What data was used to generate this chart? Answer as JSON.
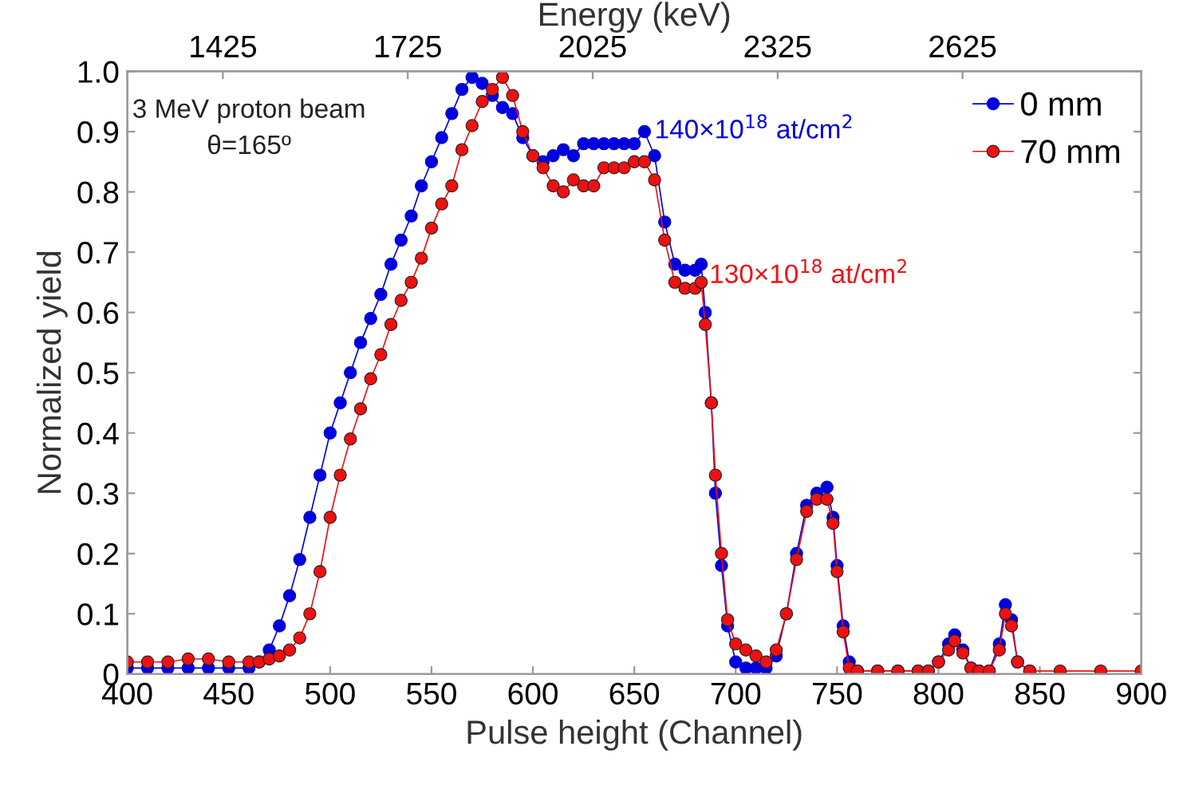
{
  "chart_data": {
    "type": "line",
    "xlabel": "Pulse height (Channel)",
    "ylabel": "Normalized yield",
    "x2label": "Energy (keV)",
    "xlim": [
      400,
      900
    ],
    "xticks": [
      400,
      450,
      500,
      550,
      600,
      650,
      700,
      750,
      800,
      850,
      900
    ],
    "ylim": [
      0,
      1
    ],
    "yticks": [
      0,
      0.1,
      0.2,
      0.3,
      0.4,
      0.5,
      0.6,
      0.7,
      0.8,
      0.9,
      {
        "value": 1,
        "label": "1.0"
      }
    ],
    "x2lim": [
      1270,
      2915
    ],
    "x2ticks": [
      1425,
      1725,
      2025,
      2325,
      2625
    ],
    "marker": "circle",
    "line_style": "solid",
    "legend": "top right",
    "grid": false,
    "annotations": [
      "3 MeV proton beam",
      "θ=165º",
      {
        "text": "140×10$^{18}$ at/cm$^{2}$",
        "x": 660,
        "y": 0.9
      },
      {
        "text": "130×10$^{18}$ at/cm$^{2}$",
        "x": 687,
        "y": 0.66
      }
    ],
    "series": [
      {
        "name": "0 mm",
        "color": "#0000dd",
        "x": [
          400,
          410,
          420,
          430,
          440,
          450,
          460,
          465,
          470,
          475,
          480,
          485,
          490,
          495,
          500,
          505,
          510,
          515,
          520,
          525,
          530,
          535,
          540,
          545,
          550,
          555,
          560,
          565,
          570,
          575,
          580,
          585,
          590,
          595,
          600,
          605,
          610,
          615,
          620,
          625,
          630,
          635,
          640,
          645,
          650,
          655,
          660,
          665,
          670,
          675,
          680,
          683,
          685,
          688,
          690,
          693,
          696,
          700,
          705,
          710,
          715,
          720,
          725,
          730,
          735,
          740,
          745,
          748,
          750,
          753,
          756,
          760,
          770,
          780,
          790,
          795,
          800,
          805,
          808,
          812,
          816,
          820,
          825,
          830,
          833,
          836,
          839,
          845
        ],
        "values": [
          0.01,
          0.01,
          0.01,
          0.01,
          0.01,
          0.01,
          0.01,
          0.02,
          0.04,
          0.08,
          0.13,
          0.19,
          0.26,
          0.33,
          0.4,
          0.45,
          0.5,
          0.55,
          0.59,
          0.63,
          0.68,
          0.72,
          0.76,
          0.81,
          0.85,
          0.89,
          0.93,
          0.97,
          0.99,
          0.98,
          0.96,
          0.94,
          0.93,
          0.89,
          0.86,
          0.85,
          0.86,
          0.87,
          0.86,
          0.88,
          0.88,
          0.88,
          0.88,
          0.88,
          0.88,
          0.9,
          0.86,
          0.75,
          0.68,
          0.67,
          0.67,
          0.68,
          0.6,
          0.45,
          0.3,
          0.18,
          0.08,
          0.02,
          0.01,
          0.01,
          0.01,
          0.03,
          0.1,
          0.2,
          0.28,
          0.3,
          0.31,
          0.26,
          0.18,
          0.08,
          0.02,
          0.005,
          0.005,
          0.005,
          0.005,
          0.005,
          0.02,
          0.05,
          0.065,
          0.04,
          0.01,
          0.005,
          0.005,
          0.05,
          0.115,
          0.09,
          0.02,
          0.005
        ]
      },
      {
        "name": "70 mm",
        "color": "#ee1111",
        "x": [
          400,
          410,
          420,
          430,
          440,
          450,
          460,
          465,
          470,
          475,
          480,
          485,
          490,
          495,
          500,
          505,
          510,
          515,
          520,
          525,
          530,
          535,
          540,
          545,
          550,
          555,
          560,
          565,
          570,
          575,
          580,
          585,
          590,
          595,
          600,
          605,
          610,
          615,
          620,
          625,
          630,
          635,
          640,
          645,
          650,
          655,
          660,
          665,
          670,
          675,
          680,
          683,
          685,
          688,
          690,
          693,
          696,
          700,
          705,
          710,
          715,
          720,
          725,
          730,
          735,
          740,
          745,
          748,
          750,
          753,
          756,
          760,
          770,
          780,
          790,
          795,
          800,
          805,
          808,
          812,
          816,
          820,
          825,
          830,
          833,
          836,
          839,
          845,
          860,
          880,
          900
        ],
        "values": [
          0.02,
          0.02,
          0.02,
          0.025,
          0.025,
          0.02,
          0.02,
          0.02,
          0.025,
          0.03,
          0.04,
          0.06,
          0.1,
          0.17,
          0.26,
          0.33,
          0.39,
          0.44,
          0.49,
          0.53,
          0.58,
          0.62,
          0.65,
          0.69,
          0.74,
          0.78,
          0.81,
          0.87,
          0.91,
          0.95,
          0.97,
          0.99,
          0.96,
          0.9,
          0.86,
          0.84,
          0.81,
          0.8,
          0.82,
          0.81,
          0.81,
          0.84,
          0.84,
          0.84,
          0.85,
          0.85,
          0.82,
          0.72,
          0.65,
          0.64,
          0.64,
          0.65,
          0.58,
          0.45,
          0.33,
          0.2,
          0.09,
          0.05,
          0.04,
          0.03,
          0.02,
          0.04,
          0.1,
          0.19,
          0.27,
          0.29,
          0.29,
          0.25,
          0.17,
          0.07,
          0.01,
          0.005,
          0.005,
          0.005,
          0.005,
          0.005,
          0.02,
          0.04,
          0.055,
          0.035,
          0.01,
          0.005,
          0.005,
          0.04,
          0.1,
          0.08,
          0.02,
          0.005,
          0.005,
          0.005,
          0.005
        ]
      }
    ]
  }
}
